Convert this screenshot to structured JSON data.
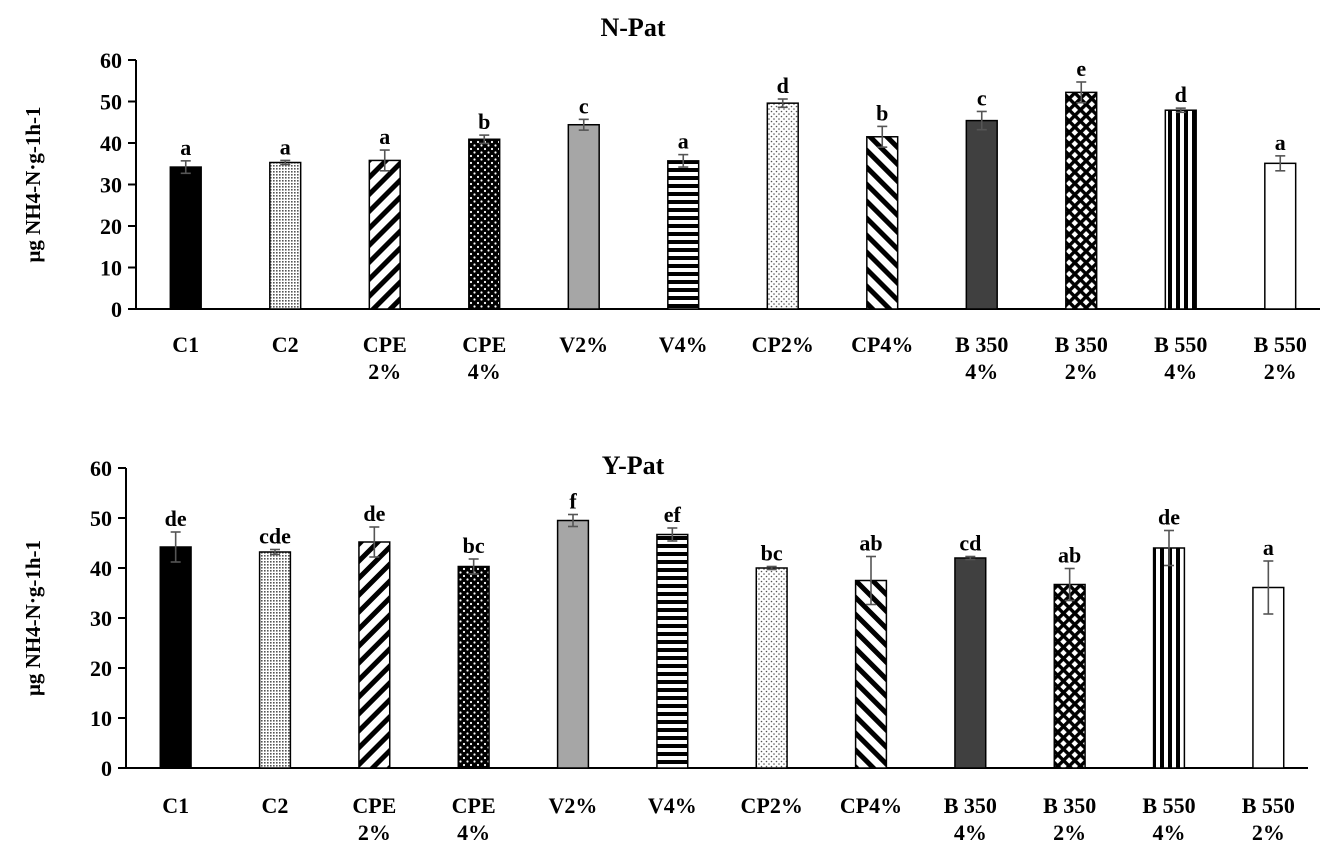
{
  "chart_data": [
    {
      "type": "bar",
      "title": "N-Pat",
      "xlabel": "",
      "ylabel": "μg NH4-N·g-1h-1",
      "ylim": [
        0,
        60
      ],
      "yticks": [
        0,
        10,
        20,
        30,
        40,
        50,
        60
      ],
      "categories": [
        [
          "C1"
        ],
        [
          "C2"
        ],
        [
          "CPE",
          "2%"
        ],
        [
          "CPE",
          "4%"
        ],
        [
          "V2%"
        ],
        [
          "V4%"
        ],
        [
          "CP2%"
        ],
        [
          "CP4%"
        ],
        [
          "B 350",
          "4%"
        ],
        [
          "B 350",
          "2%"
        ],
        [
          "B 550",
          "4%"
        ],
        [
          "B 550",
          "2%"
        ]
      ],
      "values": [
        34.2,
        35.3,
        35.8,
        40.9,
        44.4,
        35.7,
        49.6,
        41.5,
        45.4,
        52.2,
        47.9,
        35.1
      ],
      "errors": [
        1.5,
        0.5,
        2.5,
        1.0,
        1.3,
        1.5,
        1.0,
        2.5,
        2.2,
        2.5,
        0.5,
        1.8
      ],
      "letters": [
        "a",
        "a",
        "a",
        "b",
        "c",
        "a",
        "d",
        "b",
        "c",
        "e",
        "d",
        "a"
      ],
      "patterns": [
        "solid-black",
        "fine-dots",
        "diag-back",
        "dense-dots",
        "solid-gray",
        "horiz-lines",
        "light-dots",
        "diag-fwd",
        "solid-dark",
        "crosshatch",
        "vert-lines",
        "solid-white"
      ]
    },
    {
      "type": "bar",
      "title": "Y-Pat",
      "xlabel": "",
      "ylabel": "μg NH4-N·g-1h-1",
      "ylim": [
        0,
        60
      ],
      "yticks": [
        0,
        10,
        20,
        30,
        40,
        50,
        60
      ],
      "categories": [
        [
          "C1"
        ],
        [
          "C2"
        ],
        [
          "CPE",
          "2%"
        ],
        [
          "CPE",
          "4%"
        ],
        [
          "V2%"
        ],
        [
          "V4%"
        ],
        [
          "CP2%"
        ],
        [
          "CP4%"
        ],
        [
          "B 350",
          "4%"
        ],
        [
          "B 350",
          "2%"
        ],
        [
          "B 550",
          "4%"
        ],
        [
          "B 550",
          "2%"
        ]
      ],
      "values": [
        44.2,
        43.2,
        45.2,
        40.3,
        49.5,
        46.7,
        40.0,
        37.5,
        42.0,
        36.7,
        44.0,
        36.1
      ],
      "errors": [
        3.0,
        0.5,
        3.0,
        1.5,
        1.2,
        1.3,
        0.3,
        4.8,
        0.3,
        3.2,
        3.5,
        5.3
      ],
      "letters": [
        "de",
        "cde",
        "de",
        "bc",
        "f",
        "ef",
        "bc",
        "ab",
        "cd",
        "ab",
        "de",
        "a"
      ],
      "patterns": [
        "solid-black",
        "fine-dots",
        "diag-back",
        "dense-dots",
        "solid-gray",
        "horiz-lines",
        "light-dots",
        "diag-fwd",
        "solid-dark",
        "crosshatch",
        "vert-lines",
        "solid-white"
      ]
    }
  ]
}
